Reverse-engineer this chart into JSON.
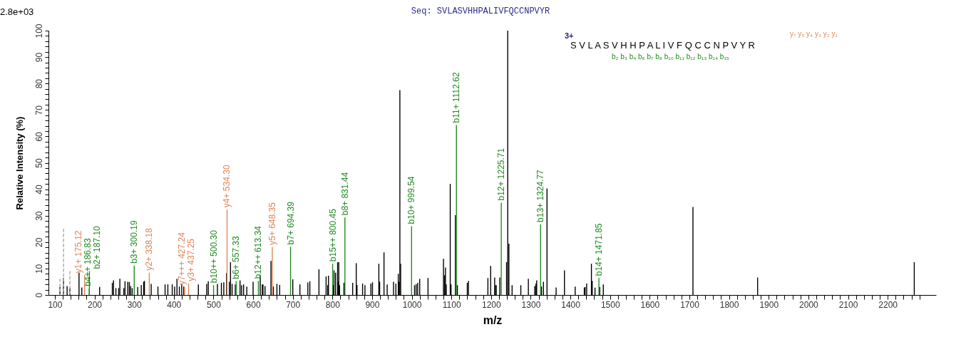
{
  "chart_data": {
    "type": "bar",
    "title": "Seq: SVLASVHHPALIVFQCCNPVYR",
    "xlabel": "m/z",
    "ylabel": "Relative  Intensity (%)",
    "annotations": [
      "2.8e+03",
      "3+",
      "S V L A S V H H P A L I V F Q C C N P V Y R",
      "b₂ b₃ b₄ b₆ b₇ b₈ b₁₀ b₁₁ b₁₂ b₁₃ b₁₄ b₁₅",
      "y₇ y₅ y₄ y₃ y₂ y₁"
    ],
    "xlim": [
      93,
      2313
    ],
    "ylim": [
      0,
      100
    ],
    "xticks": [
      100,
      {
        "value": 120,
        "label": null
      },
      {
        "value": 140,
        "label": null
      },
      {
        "value": 160,
        "label": null
      },
      {
        "value": 180,
        "label": null
      },
      200,
      {
        "value": 220,
        "label": null
      },
      {
        "value": 240,
        "label": null
      },
      {
        "value": 260,
        "label": null
      },
      {
        "value": 280,
        "label": null
      },
      300,
      {
        "value": 320,
        "label": null
      },
      {
        "value": 340,
        "label": null
      },
      {
        "value": 360,
        "label": null
      },
      {
        "value": 380,
        "label": null
      },
      400,
      {
        "value": 420,
        "label": null
      },
      {
        "value": 440,
        "label": null
      },
      {
        "value": 460,
        "label": null
      },
      {
        "value": 480,
        "label": null
      },
      500,
      {
        "value": 520,
        "label": null
      },
      {
        "value": 540,
        "label": null
      },
      {
        "value": 560,
        "label": null
      },
      {
        "value": 580,
        "label": null
      },
      600,
      {
        "value": 620,
        "label": null
      },
      {
        "value": 640,
        "label": null
      },
      {
        "value": 660,
        "label": null
      },
      {
        "value": 680,
        "label": null
      },
      700,
      {
        "value": 720,
        "label": null
      },
      {
        "value": 740,
        "label": null
      },
      {
        "value": 760,
        "label": null
      },
      {
        "value": 780,
        "label": null
      },
      800,
      {
        "value": 820,
        "label": null
      },
      {
        "value": 840,
        "label": null
      },
      {
        "value": 860,
        "label": null
      },
      {
        "value": 880,
        "label": null
      },
      900,
      {
        "value": 920,
        "label": null
      },
      {
        "value": 940,
        "label": null
      },
      {
        "value": 960,
        "label": null
      },
      {
        "value": 980,
        "label": null
      },
      1000,
      {
        "value": 1020,
        "label": null
      },
      {
        "value": 1040,
        "label": null
      },
      {
        "value": 1060,
        "label": null
      },
      {
        "value": 1080,
        "label": null
      },
      1100,
      {
        "value": 1120,
        "label": null
      },
      {
        "value": 1140,
        "label": null
      },
      {
        "value": 1160,
        "label": null
      },
      {
        "value": 1180,
        "label": null
      },
      1200,
      {
        "value": 1220,
        "label": null
      },
      {
        "value": 1240,
        "label": null
      },
      {
        "value": 1260,
        "label": null
      },
      {
        "value": 1280,
        "label": null
      },
      1300,
      {
        "value": 1320,
        "label": null
      },
      {
        "value": 1340,
        "label": null
      },
      {
        "value": 1360,
        "label": null
      },
      {
        "value": 1380,
        "label": null
      },
      1400,
      {
        "value": 1420,
        "label": null
      },
      {
        "value": 1440,
        "label": null
      },
      {
        "value": 1460,
        "label": null
      },
      {
        "value": 1480,
        "label": null
      },
      1500,
      {
        "value": 1520,
        "label": null
      },
      {
        "value": 1540,
        "label": null
      },
      {
        "value": 1560,
        "label": null
      },
      {
        "value": 1580,
        "label": null
      },
      1600,
      {
        "value": 1620,
        "label": null
      },
      {
        "value": 1640,
        "label": null
      },
      {
        "value": 1660,
        "label": null
      },
      {
        "value": 1680,
        "label": null
      },
      1700,
      {
        "value": 1720,
        "label": null
      },
      {
        "value": 1740,
        "label": null
      },
      {
        "value": 1760,
        "label": null
      },
      {
        "value": 1780,
        "label": null
      },
      1800,
      {
        "value": 1820,
        "label": null
      },
      {
        "value": 1840,
        "label": null
      },
      {
        "value": 1860,
        "label": null
      },
      {
        "value": 1880,
        "label": null
      },
      1900,
      {
        "value": 1920,
        "label": null
      },
      {
        "value": 1940,
        "label": null
      },
      {
        "value": 1960,
        "label": null
      },
      {
        "value": 1980,
        "label": null
      },
      2000,
      {
        "value": 2020,
        "label": null
      },
      {
        "value": 2040,
        "label": null
      },
      {
        "value": 2060,
        "label": null
      },
      {
        "value": 2080,
        "label": null
      },
      2100,
      {
        "value": 2120,
        "label": null
      },
      {
        "value": 2140,
        "label": null
      },
      {
        "value": 2160,
        "label": null
      },
      {
        "value": 2180,
        "label": null
      },
      2200,
      {
        "value": 2220,
        "label": null
      },
      {
        "value": 2240,
        "label": null
      },
      {
        "value": 2260,
        "label": null
      },
      {
        "value": 2280,
        "label": null
      }
    ],
    "yticks": [
      0,
      {
        "value": 2,
        "label": null
      },
      {
        "value": 4,
        "label": null
      },
      {
        "value": 6,
        "label": null
      },
      {
        "value": 8,
        "label": null
      },
      10,
      {
        "value": 12,
        "label": null
      },
      {
        "value": 14,
        "label": null
      },
      {
        "value": 16,
        "label": null
      },
      {
        "value": 18,
        "label": null
      },
      20,
      {
        "value": 22,
        "label": null
      },
      {
        "value": 24,
        "label": null
      },
      {
        "value": 26,
        "label": null
      },
      {
        "value": 28,
        "label": null
      },
      30,
      {
        "value": 32,
        "label": null
      },
      {
        "value": 34,
        "label": null
      },
      {
        "value": 36,
        "label": null
      },
      {
        "value": 38,
        "label": null
      },
      40,
      {
        "value": 42,
        "label": null
      },
      {
        "value": 44,
        "label": null
      },
      {
        "value": 46,
        "label": null
      },
      {
        "value": 48,
        "label": null
      },
      50,
      {
        "value": 52,
        "label": null
      },
      {
        "value": 54,
        "label": null
      },
      {
        "value": 56,
        "label": null
      },
      {
        "value": 58,
        "label": null
      },
      60,
      {
        "value": 62,
        "label": null
      },
      {
        "value": 64,
        "label": null
      },
      {
        "value": 66,
        "label": null
      },
      {
        "value": 68,
        "label": null
      },
      70,
      {
        "value": 72,
        "label": null
      },
      {
        "value": 74,
        "label": null
      },
      {
        "value": 76,
        "label": null
      },
      {
        "value": 78,
        "label": null
      },
      80,
      {
        "value": 82,
        "label": null
      },
      {
        "value": 84,
        "label": null
      },
      {
        "value": 86,
        "label": null
      },
      {
        "value": 88,
        "label": null
      },
      90,
      {
        "value": 92,
        "label": null
      },
      {
        "value": 94,
        "label": null
      },
      {
        "value": 96,
        "label": null
      },
      {
        "value": 98,
        "label": null
      },
      100
    ],
    "grid": false,
    "series": [
      {
        "color": "#000000",
        "x": [
          113,
          122,
          131,
          138,
          161,
          168,
          213,
          245,
          248,
          254,
          261,
          264,
          274,
          277,
          284,
          288,
          291,
          295,
          309,
          318,
          324,
          326,
          343,
          360,
          378,
          385,
          396,
          402,
          408,
          414,
          420,
          425,
          462,
          483,
          487,
          510,
          520,
          526,
          533,
          540,
          543,
          547,
          555,
          567,
          571,
          576,
          584,
          600,
          618,
          623,
          625,
          630,
          645,
          651,
          660,
          667,
          700,
          718,
          738,
          743,
          766,
          784,
          788,
          790,
          802,
          804,
          808,
          813,
          815,
          816,
          818,
          829,
          851,
          860,
          862,
          876,
          882,
          897,
          901,
          917,
          919,
          930,
          938,
          954,
          960,
          966,
          968,
          970,
          972,
          1007,
          1011,
          1015,
          1020,
          1041,
          1080,
          1083,
          1085,
          1087,
          1097,
          1099,
          1110,
          1115,
          1140,
          1143,
          1192,
          1199,
          1209,
          1211,
          1213,
          1222,
          1239,
          1242,
          1245,
          1253,
          1275,
          1294,
          1310,
          1313,
          1315,
          1327,
          1332,
          1341,
          1364,
          1385,
          1412,
          1435,
          1437,
          1441,
          1453,
          1455,
          1462,
          1474,
          1483,
          1709,
          1872,
          2267
        ],
        "values": [
          3,
          6.4,
          3.4,
          2.6,
          8.4,
          2.8,
          3,
          4.6,
          5.5,
          2.6,
          2.6,
          6.1,
          2.6,
          5.2,
          5,
          4.9,
          3.4,
          2.6,
          3,
          3.8,
          5,
          5.3,
          4.2,
          3.2,
          4,
          4,
          4,
          3.2,
          6.1,
          3.2,
          4,
          3.2,
          4,
          4.2,
          5.2,
          4.2,
          4.6,
          4.8,
          8.3,
          5,
          12.4,
          4.2,
          4,
          5.5,
          3.7,
          4,
          3.2,
          5,
          7.5,
          4,
          4,
          3.4,
          12.9,
          3.2,
          4.2,
          3.8,
          5.9,
          4,
          4.7,
          5.2,
          9.7,
          7,
          3.7,
          7.3,
          3.7,
          9.3,
          8.4,
          12.4,
          5,
          12.4,
          3.7,
          4.6,
          4.6,
          12,
          3.7,
          4.3,
          3.7,
          4.3,
          4.8,
          11.8,
          5,
          16.1,
          4,
          5,
          4.3,
          8,
          5,
          77.5,
          11.8,
          3.7,
          4.1,
          4.6,
          6.1,
          6.4,
          13.7,
          7.5,
          10.4,
          4,
          42,
          4,
          30.2,
          3.7,
          4.6,
          5.3,
          6.4,
          11,
          6.6,
          3.7,
          3.7,
          6.6,
          12.4,
          100,
          19.4,
          3.7,
          3.7,
          6.1,
          3.4,
          4.3,
          5.5,
          3.2,
          5,
          40.3,
          2.8,
          9.3,
          3.2,
          2.8,
          3,
          4.3,
          11.8,
          5.3,
          2.8,
          3,
          4,
          33.3,
          6.6,
          12.4
        ]
      },
      {
        "color": "#b0b0b0",
        "line_style": "dashed",
        "x": [
          113,
          122,
          138
        ],
        "values": [
          6,
          25,
          9
        ]
      },
      {
        "color": "#228b22",
        "x": [
          186.83,
          187.1,
          300.19,
          500.3,
          557.33,
          613.34,
          694.39,
          800.45,
          831.44,
          999.54,
          1112.62,
          1225.71,
          1324.77,
          1471.85
        ],
        "values": [
          2.5,
          9,
          11.1,
          3.7,
          5.2,
          5.3,
          18.2,
          11.8,
          29.3,
          26,
          64.3,
          34.9,
          26.7,
          6.4
        ],
        "value_labels": [
          "b4++ 186.83",
          "b2+ 187.10",
          "b3+ 300.19",
          "b10++ 500.30",
          "b6+ 557.33",
          "b12++ 613.34",
          "b7+ 694.39",
          "b15++ 800.45",
          "b8+ 831.44",
          "b10+ 999.54",
          "b11+ 1112.62",
          "b12+ 1225.71",
          "b13+ 1324.77",
          "b14+ 1471.85"
        ]
      },
      {
        "color": "#e0875a",
        "x": [
          175.12,
          338.18,
          427.24,
          437.25,
          534.3,
          648.35
        ],
        "values": [
          7.5,
          8.4,
          3,
          4.4,
          32.3,
          18.1
        ],
        "value_labels": [
          "y1+ 175.12",
          "y2+ 338.18",
          "y7+++ 427.24",
          "y3+ 437.25",
          "y4+ 534.30",
          "y5+ 648.35"
        ]
      }
    ]
  }
}
